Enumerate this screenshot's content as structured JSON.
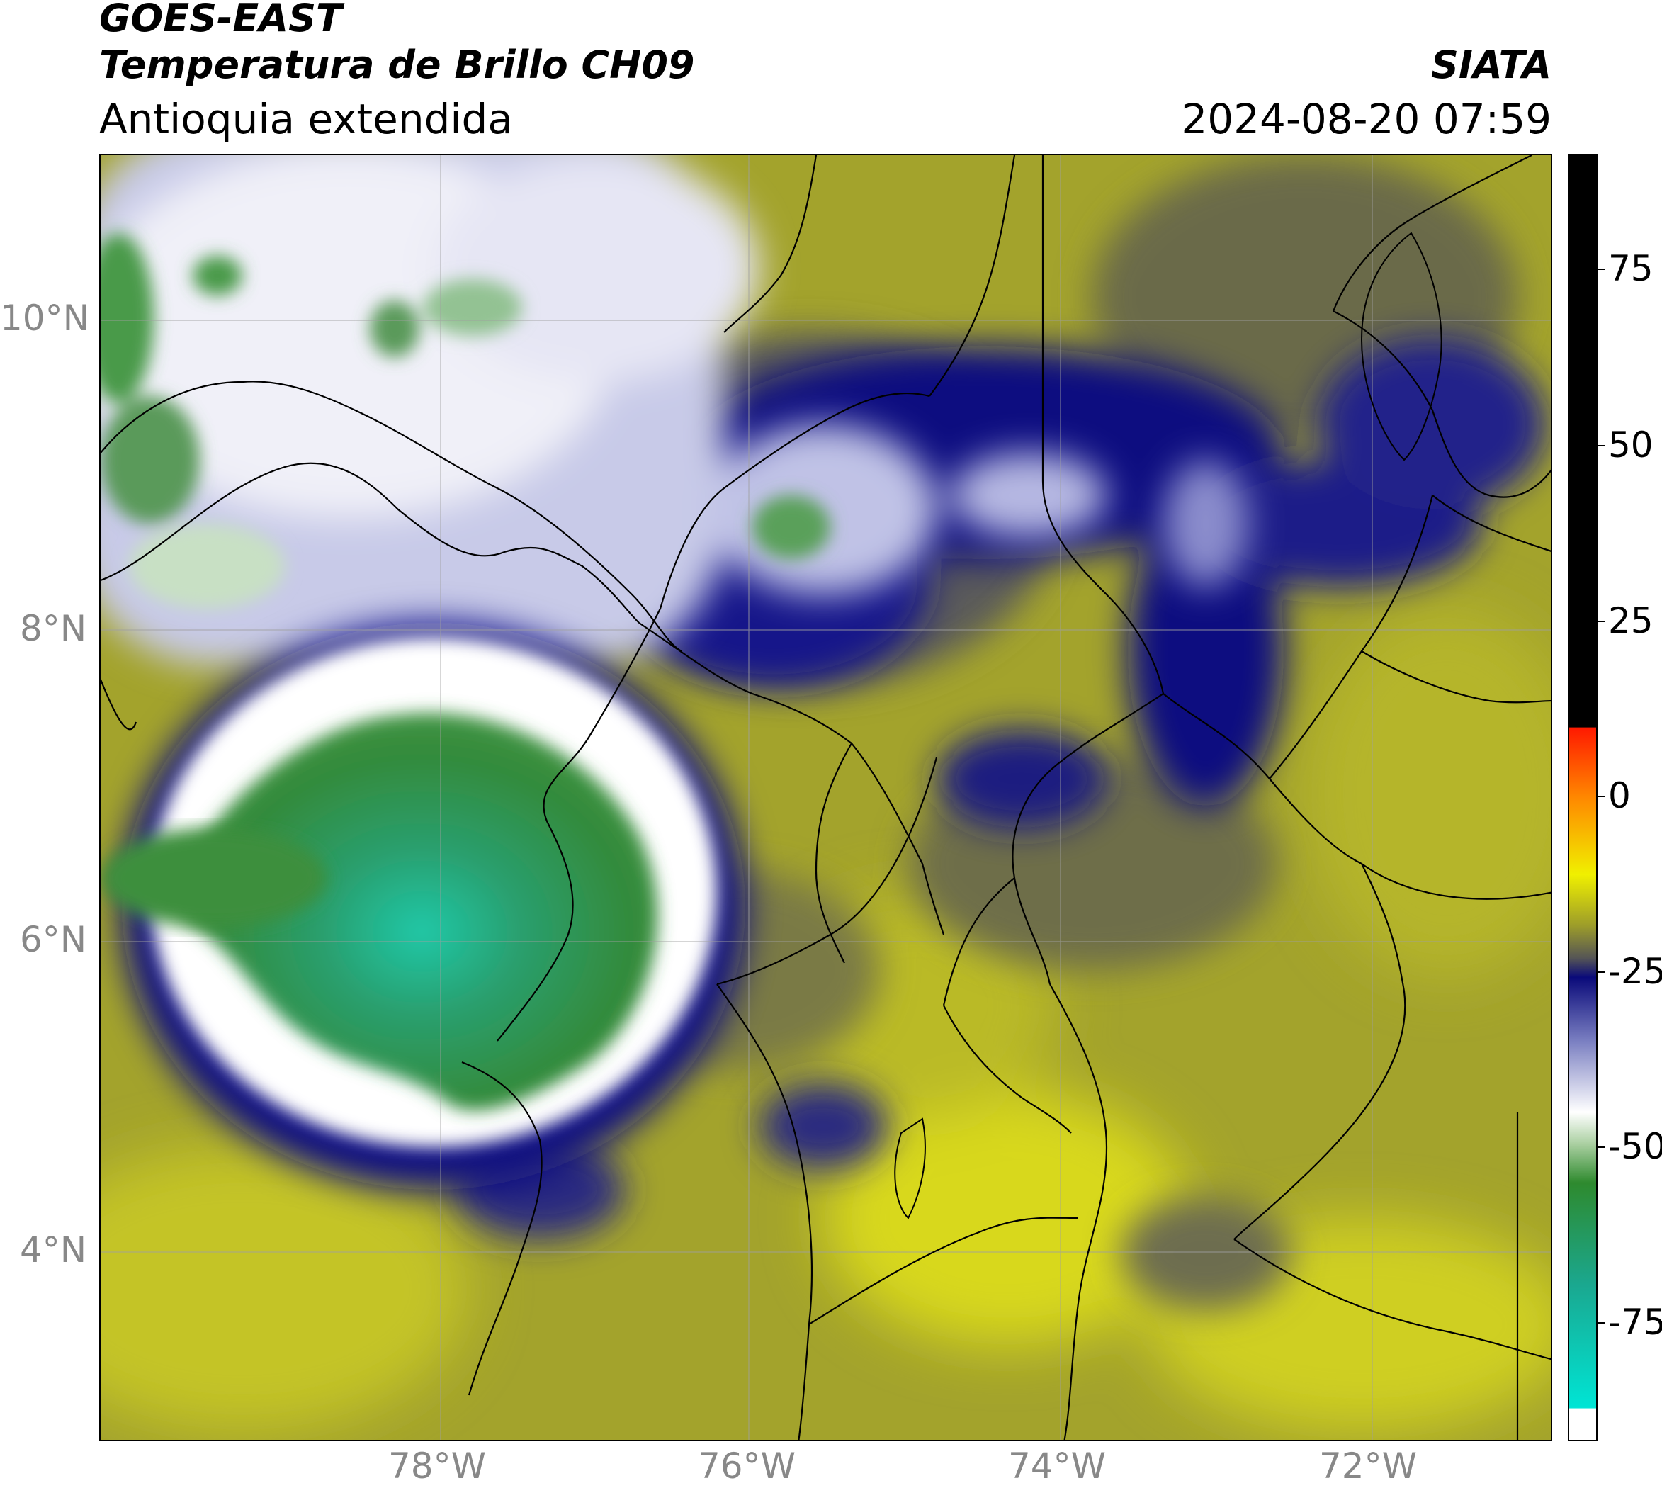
{
  "header": {
    "line1": "GOES-EAST",
    "line2": "Temperatura de Brillo CH09",
    "line3": "Antioquia extendida",
    "org": "SIATA",
    "datetime": "2024-08-20 07:59"
  },
  "map": {
    "lat_labels": [
      "10°N",
      "8°N",
      "6°N",
      "4°N"
    ],
    "lon_labels": [
      "78°W",
      "76°W",
      "74°W",
      "72°W"
    ],
    "lat_ticks": [
      10,
      8,
      6,
      4
    ],
    "lon_ticks": [
      -78,
      -76,
      -74,
      -72
    ],
    "extent": {
      "lon_min": -80.2,
      "lon_max": -70.8,
      "lat_min": 2.8,
      "lat_max": 11.0
    }
  },
  "colorbar": {
    "labels": [
      "75",
      "50",
      "25",
      "0",
      "-25",
      "-50",
      "-75"
    ],
    "ticks": [
      75,
      50,
      25,
      0,
      -25,
      -50,
      -75
    ],
    "range": [
      -91,
      93
    ],
    "colors": {
      "white_low": "#ffffff",
      "cyan": "#00e5d5",
      "teal": "#1aa890",
      "green": "#2e8a2e",
      "light_green": "#a9cfa0",
      "white": "#ffffff",
      "blue_light": "#7b80c2",
      "navy": "#0a0a7a",
      "gray": "#555555",
      "olive": "#9c9c2a",
      "yellow": "#f0f000",
      "orange": "#ff8800",
      "red": "#ff1a00",
      "black": "#000000"
    }
  }
}
